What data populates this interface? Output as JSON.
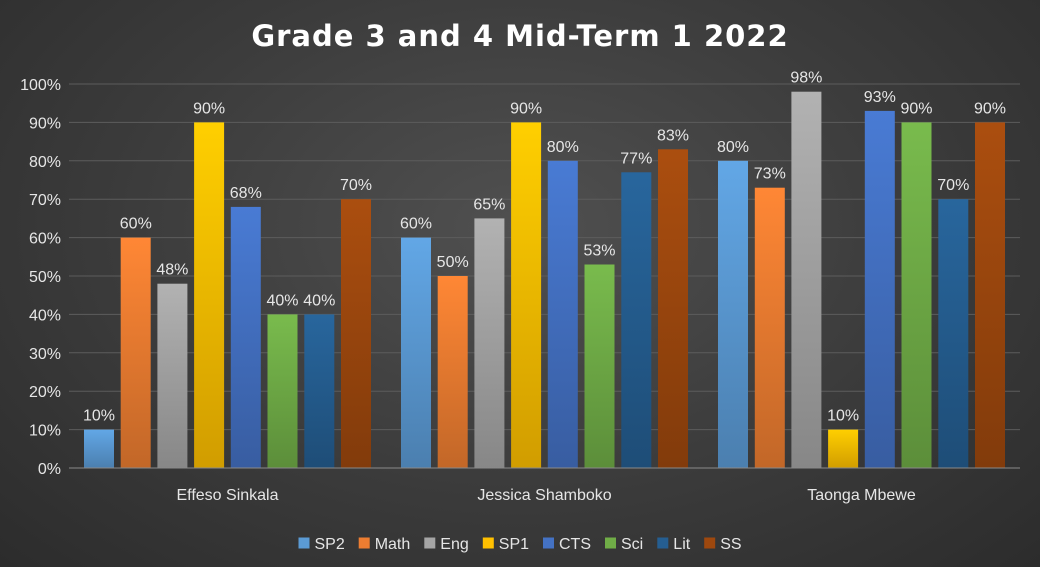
{
  "chart_data": {
    "type": "bar",
    "title": "Grade 3 and 4 Mid-Term 1 2022",
    "xlabel": "",
    "ylabel": "",
    "ylim": [
      0,
      100
    ],
    "y_ticks": [
      "0%",
      "10%",
      "20%",
      "30%",
      "40%",
      "50%",
      "60%",
      "70%",
      "80%",
      "90%",
      "100%"
    ],
    "y_format": "percent",
    "grid": true,
    "legend_position": "bottom",
    "categories": [
      "Effeso Sinkala",
      "Jessica Shamboko",
      "Taonga Mbewe"
    ],
    "series": [
      {
        "name": "SP2",
        "color": "#5b9bd5",
        "values": [
          10,
          60,
          80
        ]
      },
      {
        "name": "Math",
        "color": "#ed7d31",
        "values": [
          60,
          50,
          73
        ]
      },
      {
        "name": "Eng",
        "color": "#a5a5a5",
        "values": [
          48,
          65,
          98
        ]
      },
      {
        "name": "SP1",
        "color": "#ffc000",
        "values": [
          90,
          90,
          10
        ]
      },
      {
        "name": "CTS",
        "color": "#4472c4",
        "values": [
          68,
          80,
          93
        ]
      },
      {
        "name": "Sci",
        "color": "#70ad47",
        "values": [
          40,
          53,
          90
        ]
      },
      {
        "name": "Lit",
        "color": "#255e91",
        "values": [
          40,
          77,
          70
        ]
      },
      {
        "name": "SS",
        "color": "#9e480e",
        "values": [
          70,
          83,
          90
        ]
      }
    ],
    "data_labels": [
      [
        "10%",
        "60%",
        "80%"
      ],
      [
        "60%",
        "50%",
        "73%"
      ],
      [
        "48%",
        "65%",
        "98%"
      ],
      [
        "90%",
        "90%",
        "10%"
      ],
      [
        "68%",
        "80%",
        "93%"
      ],
      [
        "40%",
        "53%",
        "90%"
      ],
      [
        "40%",
        "77%",
        "70%"
      ],
      [
        "70%",
        "83%",
        "90%"
      ]
    ]
  }
}
